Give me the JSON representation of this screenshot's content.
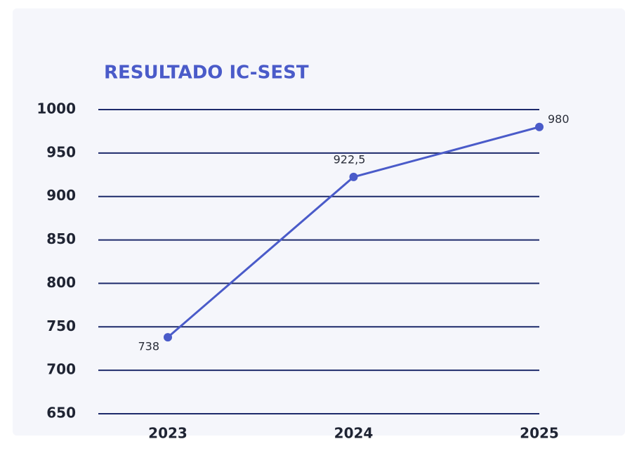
{
  "chart_data": {
    "type": "line",
    "title": "RESULTADO IC-SEST",
    "categories": [
      "2023",
      "2024",
      "2025"
    ],
    "series": [
      {
        "name": null,
        "color": "#4a5bc9",
        "values": [
          738,
          922.5,
          980
        ],
        "value_labels": [
          "738",
          "922,5",
          "980"
        ]
      }
    ],
    "ylim": [
      650,
      1000
    ],
    "yticks": [
      650,
      700,
      750,
      800,
      850,
      900,
      950,
      1000
    ],
    "grid": true
  }
}
